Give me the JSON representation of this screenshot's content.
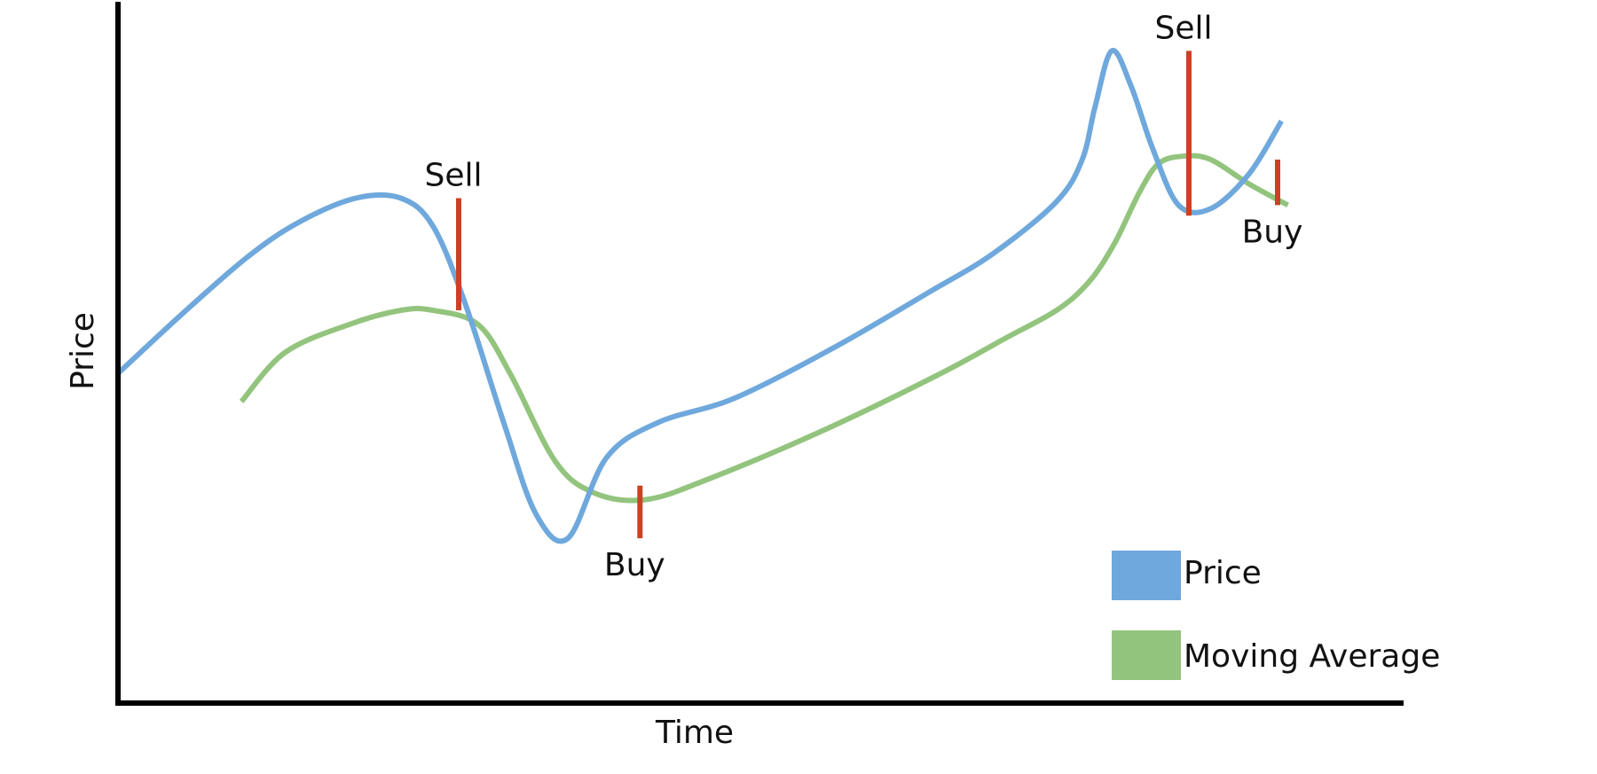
{
  "chart_data": {
    "type": "line",
    "title": "",
    "xlabel": "Time",
    "ylabel": "Price",
    "axis_ticks": false,
    "grid": false,
    "legend": {
      "placement": "bottom-right",
      "entries": [
        {
          "label": "Price",
          "color": "#6fa8dc"
        },
        {
          "label": "Moving Average",
          "color": "#93c47d"
        }
      ]
    },
    "xlim": [
      0,
      100
    ],
    "ylim": [
      0,
      100
    ],
    "series": [
      {
        "name": "Price",
        "color": "#6fa8dc",
        "points": [
          [
            0,
            47
          ],
          [
            5,
            55.5
          ],
          [
            10,
            63.5
          ],
          [
            14,
            68.5
          ],
          [
            18.5,
            72
          ],
          [
            22,
            72
          ],
          [
            24.5,
            68
          ],
          [
            27,
            57
          ],
          [
            30,
            40
          ],
          [
            32.5,
            27
          ],
          [
            35,
            23.5
          ],
          [
            38,
            35
          ],
          [
            42,
            40
          ],
          [
            48,
            43.5
          ],
          [
            56,
            51
          ],
          [
            63,
            58.5
          ],
          [
            68,
            64
          ],
          [
            73,
            71.5
          ],
          [
            75,
            77.5
          ],
          [
            76,
            85
          ],
          [
            77.3,
            93
          ],
          [
            78.8,
            88
          ],
          [
            80.5,
            79
          ],
          [
            82.5,
            71
          ],
          [
            85,
            70.5
          ],
          [
            88,
            75.5
          ],
          [
            90.5,
            83
          ]
        ]
      },
      {
        "name": "Moving Average",
        "color": "#93c47d",
        "points": [
          [
            9.6,
            43
          ],
          [
            13,
            50
          ],
          [
            18,
            54
          ],
          [
            22,
            56
          ],
          [
            24.5,
            56
          ],
          [
            28,
            54
          ],
          [
            30.5,
            47
          ],
          [
            34,
            34.5
          ],
          [
            37,
            30
          ],
          [
            41,
            29
          ],
          [
            46,
            32
          ],
          [
            55,
            39
          ],
          [
            64,
            47
          ],
          [
            69,
            52
          ],
          [
            73,
            56
          ],
          [
            75.5,
            60
          ],
          [
            77.5,
            65.5
          ],
          [
            79.5,
            73
          ],
          [
            81,
            77
          ],
          [
            83,
            78
          ],
          [
            85,
            77.5
          ],
          [
            88,
            74
          ],
          [
            91,
            71
          ]
        ]
      }
    ],
    "signals": [
      {
        "label": "Sell",
        "x": 26.5,
        "from": 56,
        "to": 72,
        "color": "#cc4125"
      },
      {
        "label": "Buy",
        "x": 40.6,
        "from": 31,
        "to": 23.5,
        "color": "#cc4125"
      },
      {
        "label": "Sell",
        "x": 83.3,
        "from": 69.5,
        "to": 93,
        "color": "#cc4125"
      },
      {
        "label": "Buy",
        "x": 90.2,
        "from": 77.5,
        "to": 71,
        "color": "#cc4125"
      }
    ]
  }
}
